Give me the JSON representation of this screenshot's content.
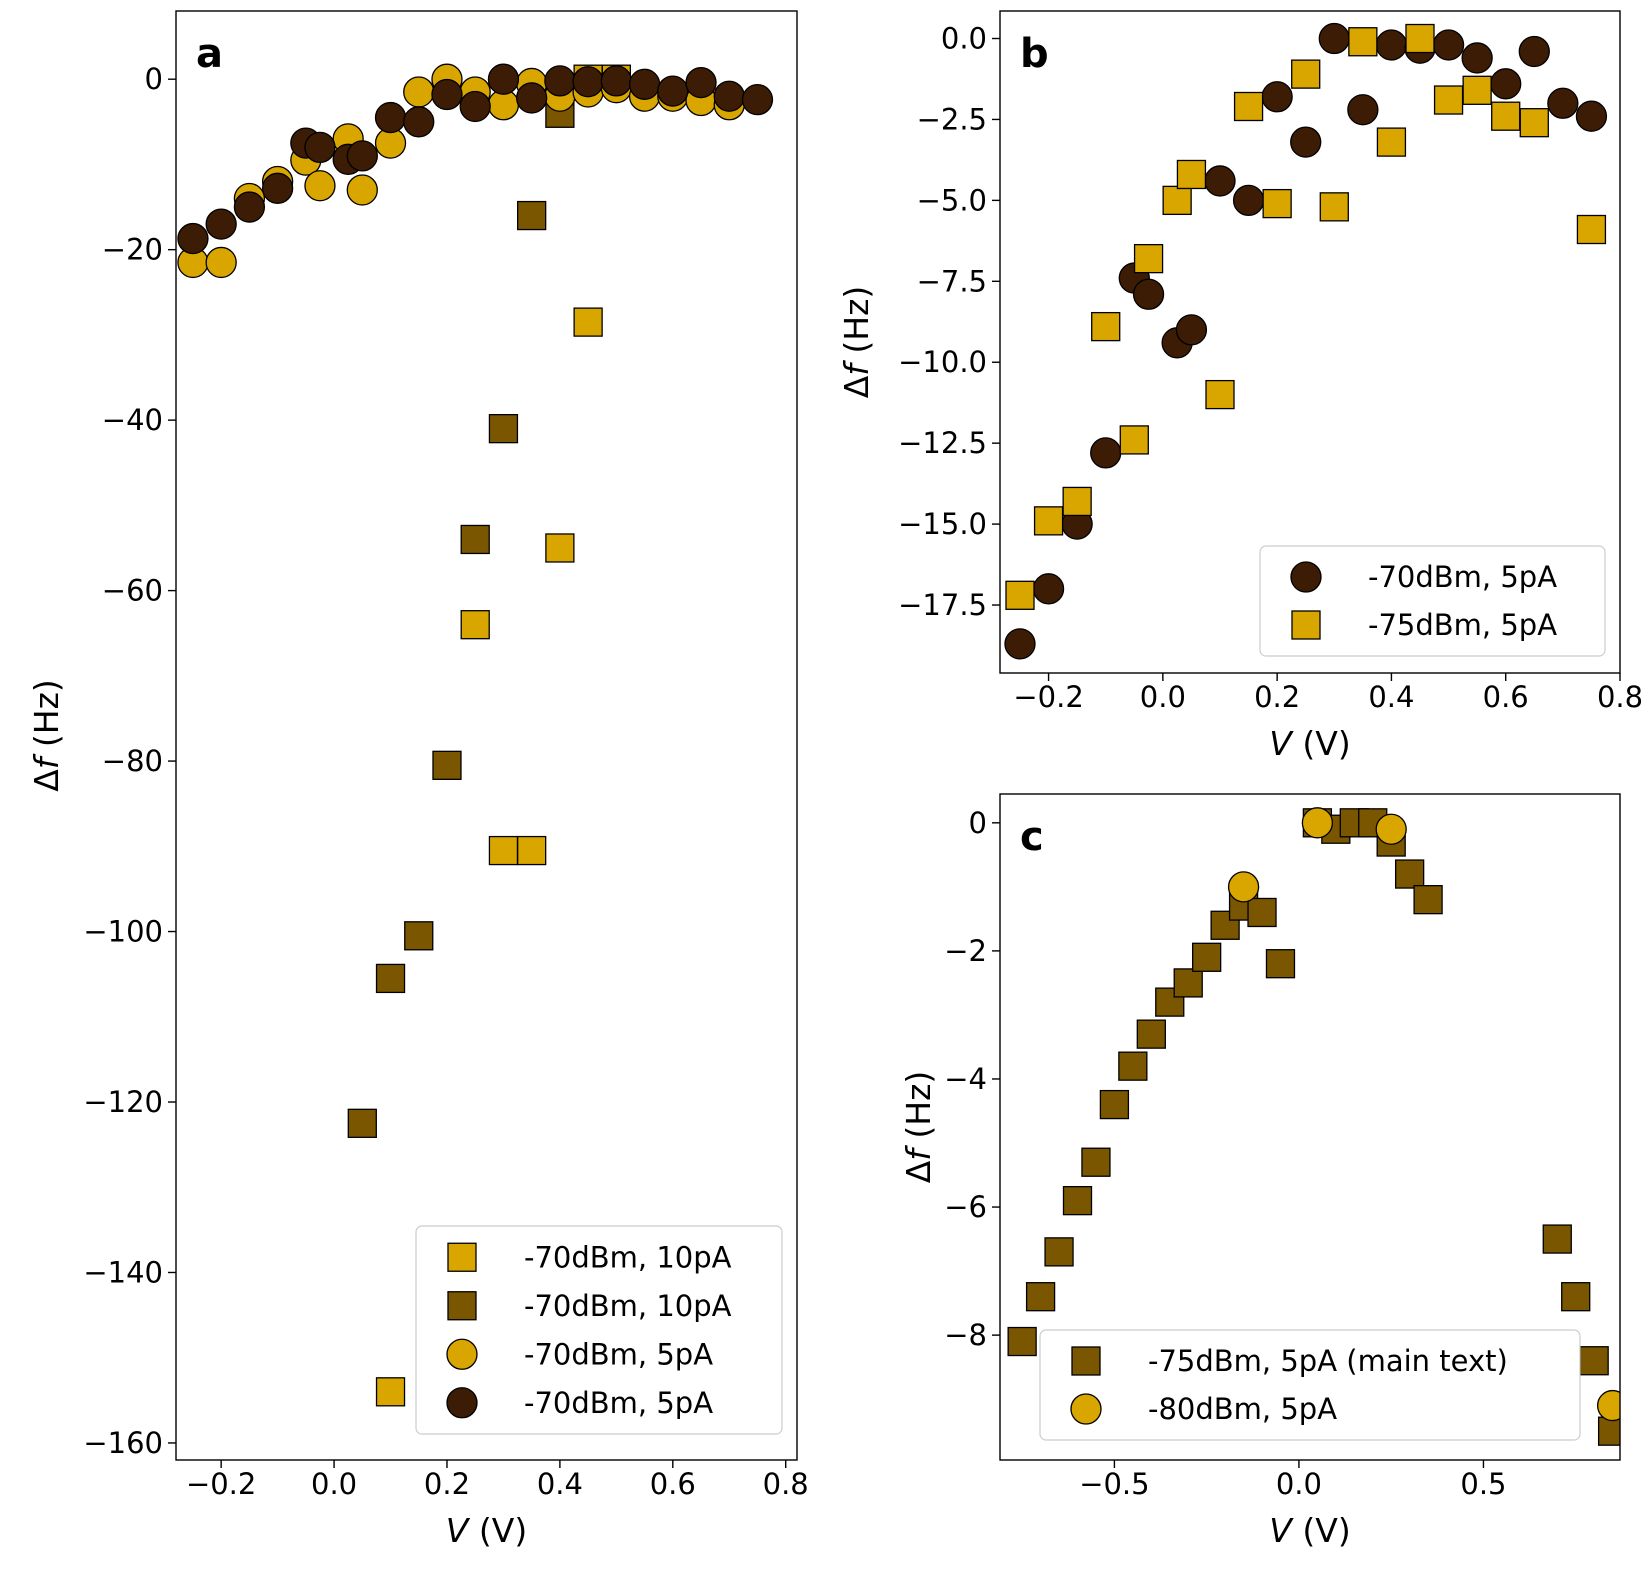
{
  "colors": {
    "light_gold": "#D9A600",
    "dark_gold": "#7A5600",
    "dark_brown": "#3C1C04",
    "edge": "#000000"
  },
  "chart_data": [
    {
      "id": "a",
      "type": "scatter",
      "panel_label": "a",
      "xlabel_var": "V",
      "xlabel_unit": " (V)",
      "ylabel_var": "f",
      "ylabel_prefix": "Δ",
      "ylabel_unit": " (Hz)",
      "xlim": [
        -0.28,
        0.82
      ],
      "ylim": [
        -162,
        8
      ],
      "xticks": [
        -0.2,
        0.0,
        0.2,
        0.4,
        0.6,
        0.8
      ],
      "xtick_labels": [
        "−0.2",
        "0.0",
        "0.2",
        "0.4",
        "0.6",
        "0.8"
      ],
      "yticks": [
        0,
        -20,
        -40,
        -60,
        -80,
        -100,
        -120,
        -140,
        -160
      ],
      "ytick_labels": [
        "0",
        "−20",
        "−40",
        "−60",
        "−80",
        "−100",
        "−120",
        "−140",
        "−160"
      ],
      "legend_position": "lower-right",
      "series": [
        {
          "name": "-70dBm, 10pA",
          "marker": "square",
          "color_key": "light_gold",
          "x": [
            0.1,
            0.25,
            0.3,
            0.35,
            0.4,
            0.45,
            0.45,
            0.5
          ],
          "y": [
            -154,
            -64,
            -90.5,
            -90.5,
            -55,
            -28.5,
            0,
            0
          ]
        },
        {
          "name": "-70dBm, 10pA",
          "marker": "square",
          "color_key": "dark_gold",
          "x": [
            0.05,
            0.1,
            0.15,
            0.2,
            0.25,
            0.3,
            0.35,
            0.4
          ],
          "y": [
            -122.5,
            -105.5,
            -100.5,
            -80.5,
            -54,
            -41,
            -16,
            -4
          ]
        },
        {
          "name": "-70dBm, 5pA",
          "marker": "circle",
          "color_key": "light_gold",
          "x": [
            -0.25,
            -0.2,
            -0.15,
            -0.1,
            -0.05,
            -0.025,
            0.025,
            0.05,
            0.1,
            0.15,
            0.2,
            0.25,
            0.3,
            0.35,
            0.4,
            0.45,
            0.5,
            0.55,
            0.6,
            0.65,
            0.7
          ],
          "y": [
            -21.5,
            -21.5,
            -14,
            -12,
            -9.5,
            -12.5,
            -7,
            -13,
            -7.5,
            -1.5,
            0,
            -1.5,
            -3,
            -0.5,
            -2,
            -1.5,
            -1,
            -2,
            -2,
            -2.5,
            -3
          ]
        },
        {
          "name": "-70dBm, 5pA",
          "marker": "circle",
          "color_key": "dark_brown",
          "x": [
            -0.25,
            -0.2,
            -0.15,
            -0.1,
            -0.05,
            -0.025,
            0.025,
            0.05,
            0.1,
            0.15,
            0.2,
            0.25,
            0.3,
            0.35,
            0.4,
            0.45,
            0.5,
            0.55,
            0.6,
            0.65,
            0.7,
            0.75
          ],
          "y": [
            -18.7,
            -17,
            -15,
            -12.8,
            -7.5,
            -8,
            -9.4,
            -9,
            -4.5,
            -5,
            -1.8,
            -3.2,
            0,
            -2.2,
            -0.2,
            -0.3,
            -0.2,
            -0.6,
            -1.4,
            -0.4,
            -2,
            -2.4
          ]
        }
      ]
    },
    {
      "id": "b",
      "type": "scatter",
      "panel_label": "b",
      "xlabel_var": "V",
      "xlabel_unit": " (V)",
      "ylabel_var": "f",
      "ylabel_prefix": "Δ",
      "ylabel_unit": " (Hz)",
      "xlim": [
        -0.285,
        0.8
      ],
      "ylim": [
        -19.6,
        0.85
      ],
      "xticks": [
        -0.2,
        0.0,
        0.2,
        0.4,
        0.6,
        0.8
      ],
      "xtick_labels": [
        "−0.2",
        "0.0",
        "0.2",
        "0.4",
        "0.6",
        "0.8"
      ],
      "yticks": [
        0.0,
        -2.5,
        -5.0,
        -7.5,
        -10.0,
        -12.5,
        -15.0,
        -17.5
      ],
      "ytick_labels": [
        "0.0",
        "−2.5",
        "−5.0",
        "−7.5",
        "−10.0",
        "−12.5",
        "−15.0",
        "−17.5"
      ],
      "legend_position": "lower-right",
      "series": [
        {
          "name": "-70dBm, 5pA",
          "marker": "circle",
          "color_key": "dark_brown",
          "x": [
            -0.25,
            -0.2,
            -0.15,
            -0.1,
            -0.05,
            -0.025,
            0.025,
            0.05,
            0.1,
            0.15,
            0.2,
            0.25,
            0.3,
            0.35,
            0.4,
            0.45,
            0.5,
            0.55,
            0.6,
            0.65,
            0.7,
            0.75
          ],
          "y": [
            -18.7,
            -17,
            -15,
            -12.8,
            -7.4,
            -7.9,
            -9.4,
            -9,
            -4.4,
            -5,
            -1.8,
            -3.2,
            0,
            -2.2,
            -0.2,
            -0.3,
            -0.2,
            -0.6,
            -1.4,
            -0.4,
            -2,
            -2.4
          ]
        },
        {
          "name": "-75dBm, 5pA",
          "marker": "square",
          "color_key": "light_gold",
          "x": [
            -0.25,
            -0.2,
            -0.15,
            -0.1,
            -0.05,
            -0.025,
            0.025,
            0.05,
            0.1,
            0.15,
            0.2,
            0.25,
            0.3,
            0.35,
            0.4,
            0.45,
            0.5,
            0.55,
            0.6,
            0.65,
            0.75
          ],
          "y": [
            -17.2,
            -14.9,
            -14.3,
            -8.9,
            -12.4,
            -6.8,
            -5,
            -4.2,
            -11,
            -2.1,
            -5.1,
            -1.1,
            -5.2,
            -0.1,
            -3.2,
            0,
            -1.9,
            -1.6,
            -2.4,
            -2.6,
            -5.9
          ]
        }
      ]
    },
    {
      "id": "c",
      "type": "scatter",
      "panel_label": "c",
      "xlabel_var": "V",
      "xlabel_unit": " (V)",
      "ylabel_var": "f",
      "ylabel_prefix": "Δ",
      "ylabel_unit": " (Hz)",
      "xlim": [
        -0.81,
        0.87
      ],
      "ylim": [
        -9.95,
        0.45
      ],
      "xticks": [
        -0.5,
        0.0,
        0.5
      ],
      "xtick_labels": [
        "−0.5",
        "0.0",
        "0.5"
      ],
      "yticks": [
        0,
        -2,
        -4,
        -6,
        -8
      ],
      "ytick_labels": [
        "0",
        "−2",
        "−4",
        "−6",
        "−8"
      ],
      "legend_position": "lower-left",
      "series": [
        {
          "name": "-75dBm, 5pA (main text)",
          "marker": "square",
          "color_key": "dark_gold",
          "x": [
            -0.75,
            -0.7,
            -0.65,
            -0.6,
            -0.55,
            -0.5,
            -0.45,
            -0.4,
            -0.35,
            -0.3,
            -0.25,
            -0.2,
            -0.15,
            -0.1,
            -0.05,
            0.05,
            0.1,
            0.15,
            0.2,
            0.25,
            0.3,
            0.35,
            0.7,
            0.75,
            0.8,
            0.85
          ],
          "y": [
            -8.1,
            -7.4,
            -6.7,
            -5.9,
            -5.3,
            -4.4,
            -3.8,
            -3.3,
            -2.8,
            -2.5,
            -2.1,
            -1.6,
            -1.3,
            -1.4,
            -2.2,
            0,
            -0.1,
            0,
            0,
            -0.3,
            -0.8,
            -1.2,
            -6.5,
            -7.4,
            -8.4,
            -9.5
          ]
        },
        {
          "name": "-80dBm, 5pA",
          "marker": "circle",
          "color_key": "light_gold",
          "x": [
            -0.15,
            0.05,
            0.25,
            0.85
          ],
          "y": [
            -1.0,
            0,
            -0.1,
            -9.1
          ]
        }
      ]
    }
  ]
}
